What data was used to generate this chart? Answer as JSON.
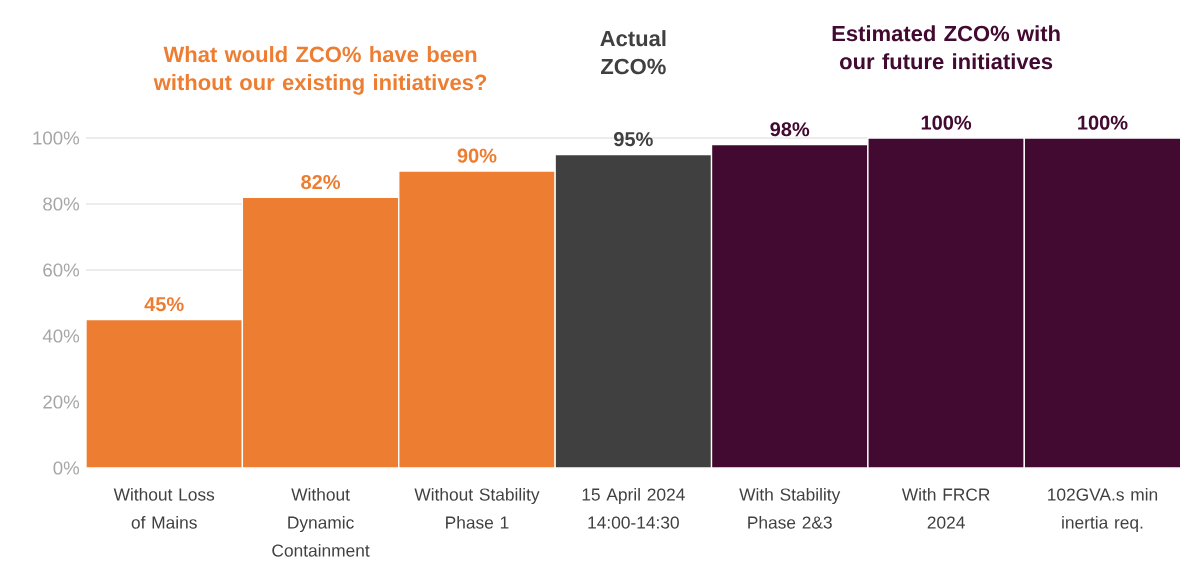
{
  "chart_data": {
    "type": "bar",
    "categories": [
      "Without Loss of Mains",
      "Without Dynamic Containment",
      "Without Stability Phase 1",
      "15 April 2024 14:00-14:30",
      "With Stability Phase 2&3",
      "With FRCR 2024",
      "102GVA.s min inertia req."
    ],
    "values": [
      45,
      82,
      90,
      95,
      98,
      100,
      100
    ],
    "value_labels": [
      "45%",
      "82%",
      "90%",
      "95%",
      "98%",
      "100%",
      "100%"
    ],
    "colors": [
      "#ed7d31",
      "#ed7d31",
      "#ed7d31",
      "#404040",
      "#420a30",
      "#420a30",
      "#420a30"
    ],
    "ylim": [
      0,
      100
    ],
    "yticks": [
      {
        "value": 0,
        "label": "0%"
      },
      {
        "value": 20,
        "label": "20%"
      },
      {
        "value": 40,
        "label": "40%"
      },
      {
        "value": 60,
        "label": "60%"
      },
      {
        "value": 80,
        "label": "80%"
      },
      {
        "value": 100,
        "label": "100%"
      }
    ],
    "grid": "y",
    "annotations": [
      "What would ZCO% have been without our existing initiatives?",
      "Actual ZCO%",
      "Estimated ZCO% with our future initiatives"
    ]
  }
}
